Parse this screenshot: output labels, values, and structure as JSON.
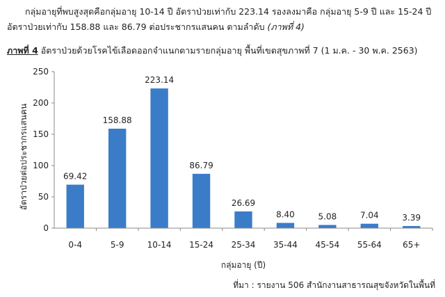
{
  "paragraph": {
    "text": "กลุ่มอายุที่พบสูงสุดคือกลุ่มอายุ 10-14 ปี อัตราป่วยเท่ากับ 223.14 รองลงมาคือ กลุ่มอายุ 5-9 ปี และ 15-24 ปี อัตราป่วยเท่ากับ 158.88 และ 86.79 ต่อประชากรแสนคน ตามลำดับ ",
    "figure_ref": "(ภาพที่ 4)"
  },
  "caption": {
    "label": "ภาพที่ 4",
    "text": " อัตราป่วยด้วยโรคไข้เลือดออกจำแนกตามรายกลุ่มอายุ พื้นที่เขตสุขภาพที่ 7 (1 ม.ค. - 30 พ.ค. 2563)"
  },
  "chart_data": {
    "type": "bar",
    "title": "",
    "xlabel": "กลุ่มอายุ (ปี)",
    "ylabel": "อัตราป่วยต่อประชากรแสนคน",
    "categories": [
      "0-4",
      "5-9",
      "10-14",
      "15-24",
      "25-34",
      "35-44",
      "45-54",
      "55-64",
      "65+"
    ],
    "values": [
      69.42,
      158.88,
      223.14,
      86.79,
      26.69,
      8.4,
      5.08,
      7.04,
      3.39
    ],
    "value_labels": [
      "69.42",
      "158.88",
      "223.14",
      "86.79",
      "26.69",
      "8.40",
      "5.08",
      "7.04",
      "3.39"
    ],
    "ylim": [
      0,
      250
    ],
    "yticks": [
      0,
      50,
      100,
      150,
      200,
      250
    ],
    "grid": false,
    "legend": "none",
    "bar_color": "#3a7cc8"
  },
  "source": "ที่มา : รายงาน 506 สำนักงานสาธารณสุขจังหวัดในพื้นที่"
}
